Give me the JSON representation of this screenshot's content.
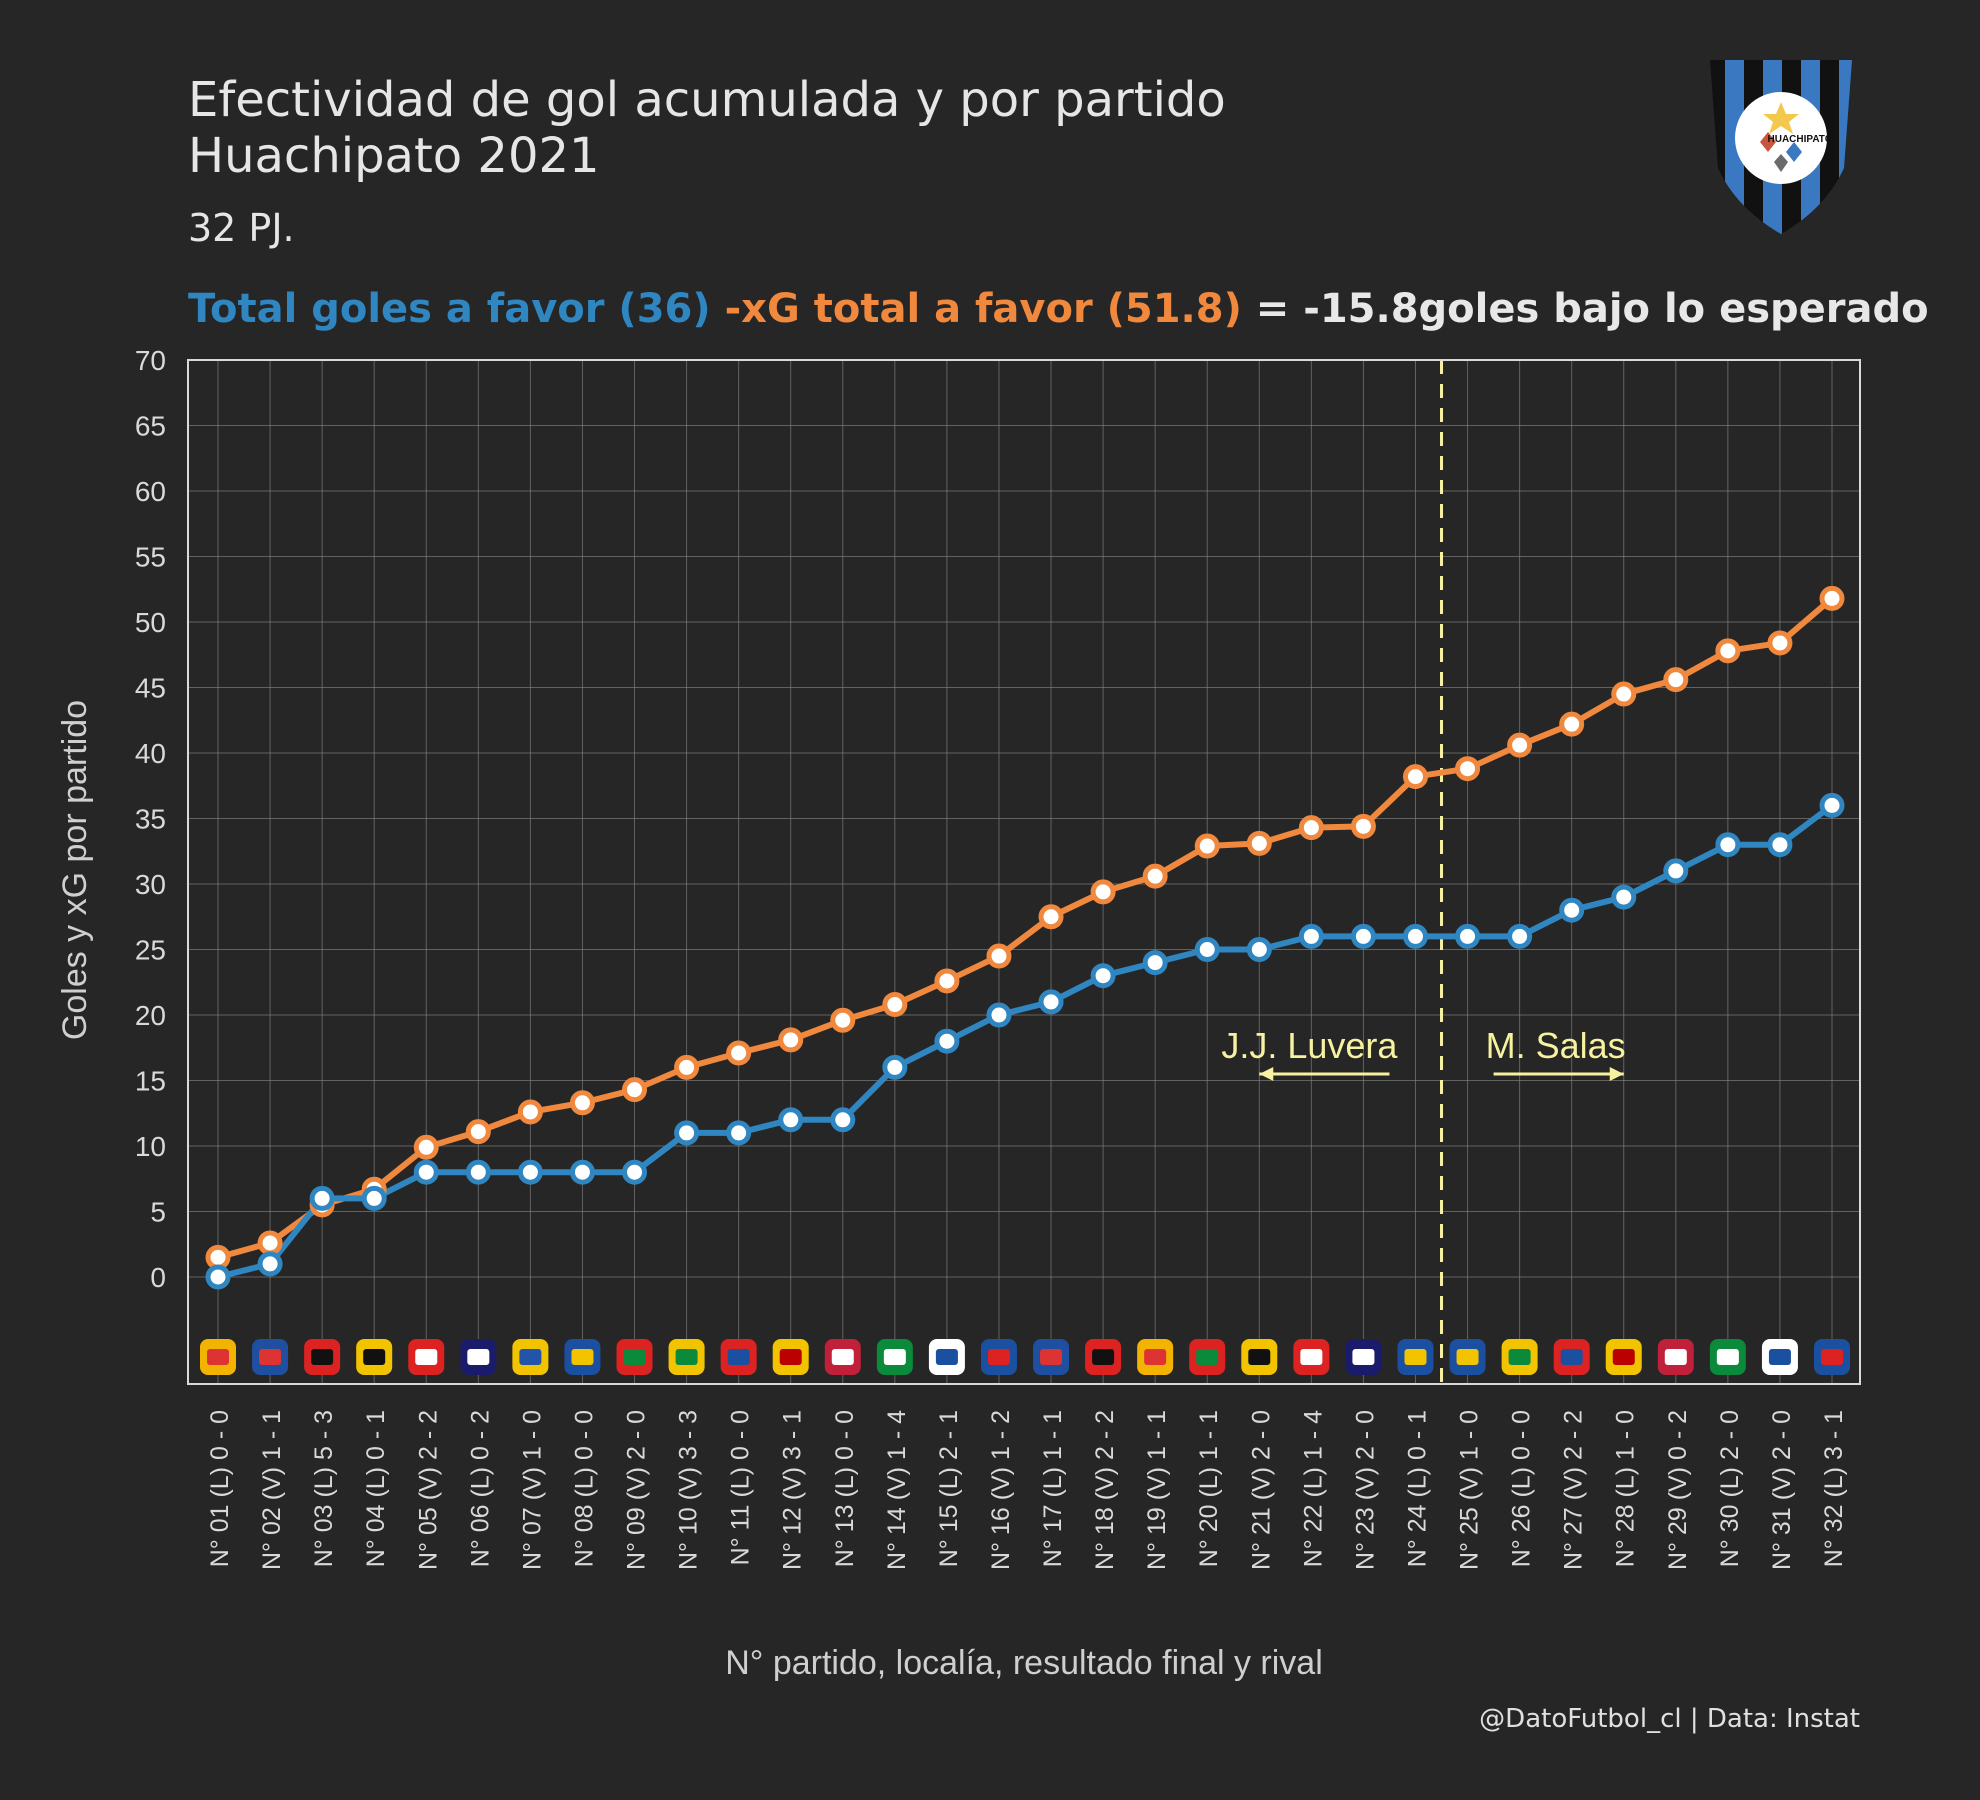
{
  "title": {
    "line1": "Efectividad de gol acumulada y por partido",
    "line2": "Huachipato 2021"
  },
  "subtitle": "32 PJ.",
  "summary": {
    "part1": "Total goles a favor (36)",
    "part2": " -xG total a favor (51.8)",
    "part3": " = -15.8goles bajo lo esperado",
    "colors": {
      "goals": "#2f86c1",
      "xg": "#f0883e",
      "text": "#e8e8e8"
    }
  },
  "logo": {
    "text": "HUACHIPATO",
    "colors": {
      "blue": "#3a78c2",
      "black": "#111111",
      "star": "#f2c94c"
    }
  },
  "credit": "@DatoFutbol_cl  |  Data: Instat",
  "chart_data": {
    "type": "line",
    "xlabel": "N° partido, localía, resultado final y rival",
    "ylabel": "Goles y xG por partido",
    "ylim": [
      0,
      70
    ],
    "yticks": [
      0,
      5,
      10,
      15,
      20,
      25,
      30,
      35,
      40,
      45,
      50,
      55,
      60,
      65,
      70
    ],
    "grid": true,
    "categories": [
      "N° 01 (L) 0 - 0",
      "N° 02 (V) 1 - 1",
      "N° 03 (L) 5 - 3",
      "N° 04 (L) 0 - 1",
      "N° 05 (V) 2 - 2",
      "N° 06 (L) 0 - 2",
      "N° 07 (V) 1 - 0",
      "N° 08 (L) 0 - 0",
      "N° 09 (V) 2 - 0",
      "N° 10 (V) 3 - 3",
      "N° 11 (L) 0 - 0",
      "N° 12 (V) 3 - 1",
      "N° 13 (L) 0 - 0",
      "N° 14 (V) 1 - 4",
      "N° 15 (L) 2 - 1",
      "N° 16 (V) 1 - 2",
      "N° 17 (L) 1 - 1",
      "N° 18 (V) 2 - 2",
      "N° 19 (V) 1 - 1",
      "N° 20 (L) 1 - 1",
      "N° 21 (V) 2 - 0",
      "N° 22 (L) 1 - 4",
      "N° 23 (V) 2 - 0",
      "N° 24 (L) 0 - 1",
      "N° 25 (V) 1 - 0",
      "N° 26 (L) 0 - 0",
      "N° 27 (V) 2 - 2",
      "N° 28 (L) 1 - 0",
      "N° 29 (V) 0 - 2",
      "N° 30 (L) 2 - 0",
      "N° 31 (V) 2 - 0",
      "N° 32 (L) 3 - 1"
    ],
    "series": [
      {
        "key": "xg",
        "color": "#f0883e",
        "values": [
          1.5,
          2.6,
          5.5,
          6.7,
          9.9,
          11.1,
          12.6,
          13.3,
          14.3,
          16.0,
          17.1,
          18.1,
          19.6,
          20.8,
          22.6,
          24.5,
          27.5,
          29.4,
          30.6,
          32.9,
          33.1,
          34.3,
          34.4,
          38.2,
          38.8,
          40.6,
          42.2,
          44.5,
          45.6,
          47.8,
          48.4,
          51.8
        ]
      },
      {
        "key": "goals",
        "color": "#2f86c1",
        "values": [
          0,
          1,
          6,
          6,
          8,
          8,
          8,
          8,
          8,
          11,
          11,
          12,
          12,
          16,
          18,
          20,
          21,
          23,
          24,
          25,
          25,
          26,
          26,
          26,
          26,
          26,
          28,
          29,
          31,
          33,
          33,
          36
        ]
      }
    ],
    "divider": {
      "after_match": 24.5,
      "color": "#f7f2a0"
    },
    "annotations": [
      {
        "text": "J.J. Luvera",
        "direction": "left",
        "from": 23.5,
        "to": 21
      },
      {
        "text": "M. Salas",
        "direction": "right",
        "from": 25.5,
        "to": 28
      }
    ],
    "rival_badges": [
      {
        "colors": [
          "#f2b400",
          "#d33"
        ]
      },
      {
        "colors": [
          "#1f4fa0",
          "#d33"
        ]
      },
      {
        "colors": [
          "#d22",
          "#111"
        ]
      },
      {
        "colors": [
          "#f2c400",
          "#111"
        ]
      },
      {
        "colors": [
          "#d22",
          "#fff"
        ]
      },
      {
        "colors": [
          "#1b1b6b",
          "#fff"
        ]
      },
      {
        "colors": [
          "#f2c400",
          "#2255aa"
        ]
      },
      {
        "colors": [
          "#1b4fa0",
          "#f2c400"
        ]
      },
      {
        "colors": [
          "#d22",
          "#0a8a3a"
        ]
      },
      {
        "colors": [
          "#f2c400",
          "#0a8a3a"
        ]
      },
      {
        "colors": [
          "#d22",
          "#1b4fa0"
        ]
      },
      {
        "colors": [
          "#f2c400",
          "#b00"
        ]
      },
      {
        "colors": [
          "#c0203a",
          "#fff"
        ]
      },
      {
        "colors": [
          "#0a8a3a",
          "#fff"
        ]
      },
      {
        "colors": [
          "#ffffff",
          "#1b4fa0"
        ]
      },
      {
        "colors": [
          "#1b4fa0",
          "#d22"
        ]
      },
      {
        "colors": [
          "#1f4fa0",
          "#d33"
        ]
      },
      {
        "colors": [
          "#d22",
          "#111"
        ]
      },
      {
        "colors": [
          "#f2b400",
          "#d33"
        ]
      },
      {
        "colors": [
          "#d22",
          "#0a8a3a"
        ]
      },
      {
        "colors": [
          "#f2c400",
          "#111"
        ]
      },
      {
        "colors": [
          "#d22",
          "#fff"
        ]
      },
      {
        "colors": [
          "#1b1b6b",
          "#fff"
        ]
      },
      {
        "colors": [
          "#1b4fa0",
          "#f2c400"
        ]
      },
      {
        "colors": [
          "#1b4fa0",
          "#f2c400"
        ]
      },
      {
        "colors": [
          "#f2c400",
          "#0a8a3a"
        ]
      },
      {
        "colors": [
          "#d22",
          "#1b4fa0"
        ]
      },
      {
        "colors": [
          "#f2c400",
          "#b00"
        ]
      },
      {
        "colors": [
          "#c0203a",
          "#fff"
        ]
      },
      {
        "colors": [
          "#0a8a3a",
          "#fff"
        ]
      },
      {
        "colors": [
          "#ffffff",
          "#1b4fa0"
        ]
      },
      {
        "colors": [
          "#1b4fa0",
          "#d22"
        ]
      }
    ]
  }
}
